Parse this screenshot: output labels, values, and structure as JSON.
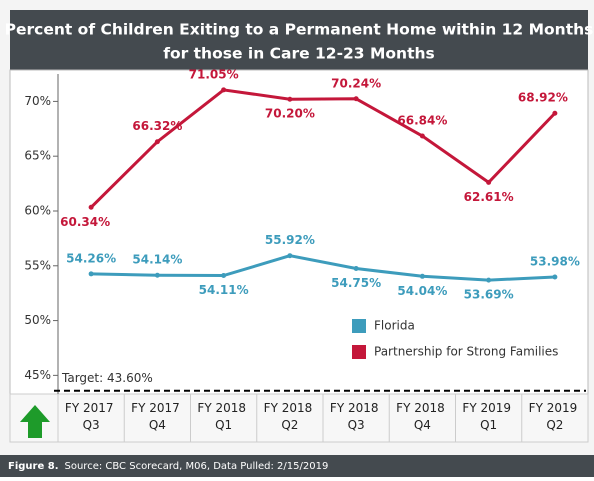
{
  "chart_data": {
    "type": "line",
    "title": [
      "Percent of Children Exiting to a Permanent Home within 12 Months",
      "for those in Care 12-23 Months"
    ],
    "categories": [
      "FY 2017 Q3",
      "FY 2017 Q4",
      "FY 2018 Q1",
      "FY 2018 Q2",
      "FY 2018 Q3",
      "FY 2018 Q4",
      "FY 2019 Q1",
      "FY 2019 Q2"
    ],
    "series": [
      {
        "name": "Florida",
        "color": "#3d9cbc",
        "values": [
          54.26,
          54.14,
          54.11,
          55.92,
          54.75,
          54.04,
          53.69,
          53.98
        ],
        "value_labels": [
          "54.26%",
          "54.14%",
          "54.11%",
          "55.92%",
          "54.75%",
          "54.04%",
          "53.69%",
          "53.98%"
        ]
      },
      {
        "name": "Partnership for Strong Families",
        "color": "#c4173a",
        "values": [
          60.34,
          66.32,
          71.05,
          70.2,
          70.24,
          66.84,
          62.61,
          68.92
        ],
        "value_labels": [
          "60.34%",
          "66.32%",
          "71.05%",
          "70.20%",
          "70.24%",
          "66.84%",
          "62.61%",
          "68.92%"
        ]
      }
    ],
    "ylim": [
      43.3,
      72.5
    ],
    "yticks": [
      {
        "value": 45,
        "label": "45%"
      },
      {
        "value": 50,
        "label": "50%"
      },
      {
        "value": 55,
        "label": "55%"
      },
      {
        "value": 60,
        "label": "60%"
      },
      {
        "value": 65,
        "label": "65%"
      },
      {
        "value": 70,
        "label": "70%"
      }
    ],
    "target": {
      "value": 43.6,
      "label": "Target: 43.60%"
    },
    "legend": "lower right",
    "footer": {
      "figure": "Figure 8.",
      "source": "Source: CBC Scorecard, M06, Data Pulled: 2/15/2019"
    }
  }
}
